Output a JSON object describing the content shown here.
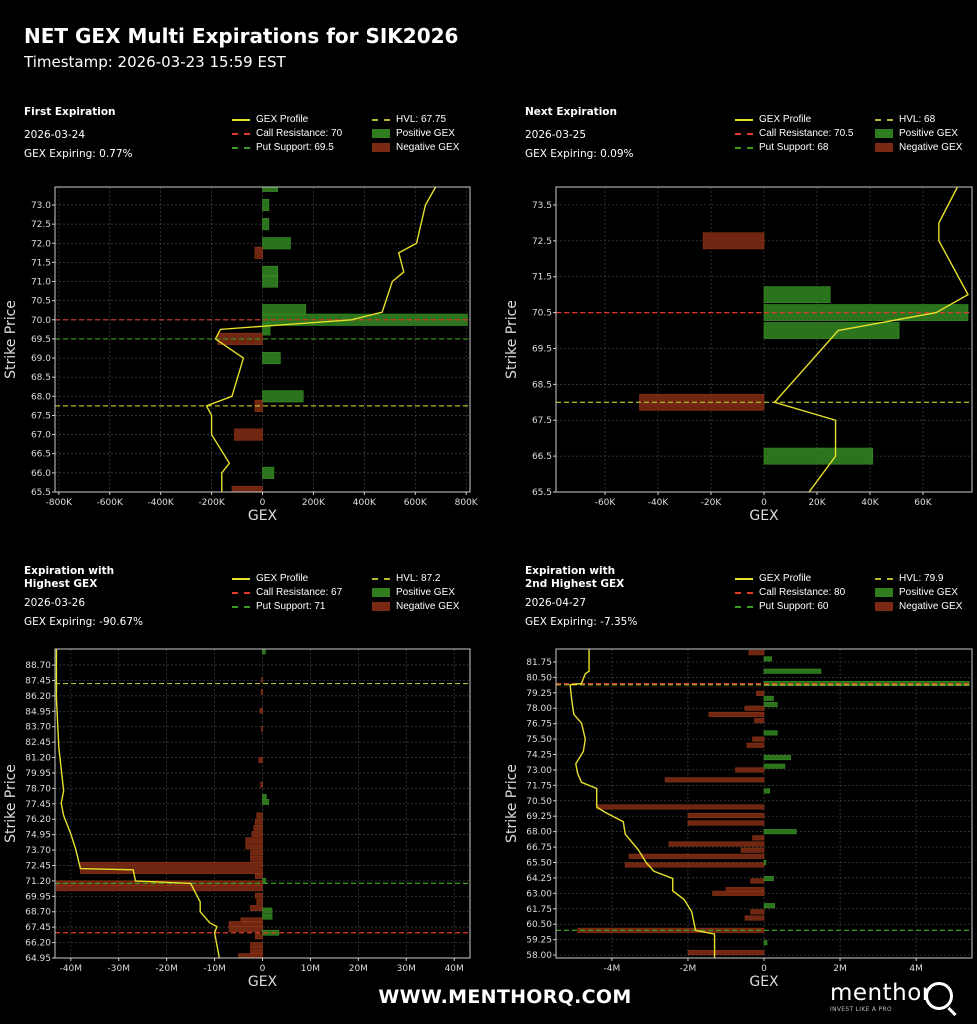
{
  "title": "NET GEX Multi Expirations for SIK2026",
  "timestamp": "Timestamp: 2026-03-23 15:59 EST",
  "footer": "WWW.MENTHORQ.COM",
  "logo": {
    "name": "menthor",
    "tagline": "INVEST LIKE A PRO"
  },
  "colors": {
    "positive": "#2f7d1f",
    "negative": "#7a2a12",
    "profile": "#e6e12a",
    "call": "#e03a2a",
    "put": "#3a9a22",
    "hvl": "#b8b82a",
    "grid": "#444444"
  },
  "panels": [
    {
      "heading": "First Expiration",
      "date": "2026-03-24",
      "expiring": "GEX Expiring: 0.77%",
      "legend": {
        "profile": "GEX Profile",
        "call": "Call Resistance: 70",
        "put": "Put Support: 69.5",
        "hvl": "HVL: 67.75",
        "pos": "Positive GEX",
        "neg": "Negative GEX"
      }
    },
    {
      "heading": "Next Expiration",
      "date": "2026-03-25",
      "expiring": "GEX Expiring: 0.09%",
      "legend": {
        "profile": "GEX Profile",
        "call": "Call Resistance: 70.5",
        "put": "Put Support: 68",
        "hvl": "HVL: 68",
        "pos": "Positive GEX",
        "neg": "Negative GEX"
      }
    },
    {
      "heading": "Expiration with\nHighest GEX",
      "date": "2026-03-26",
      "expiring": "GEX Expiring: -90.67%",
      "legend": {
        "profile": "GEX Profile",
        "call": "Call Resistance: 67",
        "put": "Put Support: 71",
        "hvl": "HVL: 87.2",
        "pos": "Positive GEX",
        "neg": "Negative GEX"
      }
    },
    {
      "heading": "Expiration with\n2nd Highest GEX",
      "date": "2026-04-27",
      "expiring": "GEX Expiring: -7.35%",
      "legend": {
        "profile": "GEX Profile",
        "call": "Call Resistance: 80",
        "put": "Put Support: 60",
        "hvl": "HVL: 79.9",
        "pos": "Positive GEX",
        "neg": "Negative GEX"
      }
    }
  ],
  "chart_data": [
    {
      "type": "bar",
      "orientation": "horizontal",
      "xlabel": "GEX",
      "ylabel": "Strike Price",
      "grid": true,
      "xlim": [
        -815000,
        815000
      ],
      "ylim": [
        65.5,
        73.47
      ],
      "xticks": [
        -800000,
        -600000,
        -400000,
        -200000,
        0,
        200000,
        400000,
        600000,
        800000
      ],
      "xtick_labels": [
        "-800K",
        "-600K",
        "-400K",
        "-200K",
        "0",
        "200K",
        "400K",
        "600K",
        "800K"
      ],
      "yticks": [
        65.5,
        66.0,
        66.5,
        67.0,
        67.5,
        68.0,
        68.5,
        69.0,
        69.5,
        70.0,
        70.5,
        71.0,
        71.5,
        72.0,
        72.5,
        73.0
      ],
      "ytick_labels": [
        "65.5",
        "66.0",
        "66.5",
        "67.0",
        "67.5",
        "68.0",
        "68.5",
        "69.0",
        "69.5",
        "70.0",
        "70.5",
        "71.0",
        "71.5",
        "72.0",
        "72.5",
        "73.0"
      ],
      "bars": [
        [
          73.5,
          60000
        ],
        [
          73.0,
          25000
        ],
        [
          72.5,
          25000
        ],
        [
          72.0,
          110000
        ],
        [
          71.75,
          -30000
        ],
        [
          71.25,
          60000
        ],
        [
          71.0,
          60000
        ],
        [
          70.25,
          170000
        ],
        [
          70.0,
          805000
        ],
        [
          69.75,
          30000
        ],
        [
          69.5,
          -175000
        ],
        [
          69.0,
          70000
        ],
        [
          68.0,
          160000
        ],
        [
          67.75,
          -30000
        ],
        [
          67.0,
          -110000
        ],
        [
          66.0,
          45000
        ],
        [
          65.5,
          -120000
        ]
      ],
      "profile": [
        [
          680000,
          73.47
        ],
        [
          640000,
          73.0
        ],
        [
          605000,
          72.0
        ],
        [
          535000,
          71.75
        ],
        [
          555000,
          71.25
        ],
        [
          510000,
          71.0
        ],
        [
          470000,
          70.2
        ],
        [
          350000,
          70.0
        ],
        [
          0,
          69.83
        ],
        [
          -165000,
          69.75
        ],
        [
          -185000,
          69.5
        ],
        [
          -75000,
          69.0
        ],
        [
          -120000,
          68.0
        ],
        [
          -220000,
          67.75
        ],
        [
          -200000,
          67.5
        ],
        [
          -200000,
          67.0
        ],
        [
          -130000,
          66.25
        ],
        [
          -160000,
          66.0
        ],
        [
          -160000,
          65.5
        ]
      ],
      "call_resistance": 70,
      "put_support": 69.5,
      "hvl": 67.75
    },
    {
      "type": "bar",
      "orientation": "horizontal",
      "xlabel": "GEX",
      "ylabel": "Strike Price",
      "grid": true,
      "xlim": [
        -78500,
        78500
      ],
      "ylim": [
        65.5,
        74.0
      ],
      "xticks": [
        -60000,
        -40000,
        -20000,
        0,
        20000,
        40000,
        60000
      ],
      "xtick_labels": [
        "-60K",
        "-40K",
        "-20K",
        "0",
        "20K",
        "40K",
        "60K"
      ],
      "yticks": [
        65.5,
        66.5,
        67.5,
        68.5,
        69.5,
        70.5,
        71.5,
        72.5,
        73.5
      ],
      "ytick_labels": [
        "65.5",
        "66.5",
        "67.5",
        "68.5",
        "69.5",
        "70.5",
        "71.5",
        "72.5",
        "73.5"
      ],
      "bars": [
        [
          72.5,
          -23000
        ],
        [
          71.0,
          25000
        ],
        [
          70.5,
          77000
        ],
        [
          70.0,
          51000
        ],
        [
          68.0,
          -47000
        ],
        [
          66.5,
          41000
        ]
      ],
      "profile": [
        [
          73000,
          74.0
        ],
        [
          66000,
          73.0
        ],
        [
          66000,
          72.5
        ],
        [
          77000,
          71.0
        ],
        [
          65000,
          70.5
        ],
        [
          28000,
          70.0
        ],
        [
          4000,
          68.0
        ],
        [
          27000,
          67.5
        ],
        [
          27000,
          66.5
        ],
        [
          17000,
          65.5
        ]
      ],
      "call_resistance": 70.5,
      "put_support": 68,
      "hvl": 68
    },
    {
      "type": "bar",
      "orientation": "horizontal",
      "xlabel": "GEX",
      "ylabel": "Strike Price",
      "grid": true,
      "xlim": [
        -43300000,
        43300000
      ],
      "ylim": [
        64.95,
        90.0
      ],
      "xticks": [
        -40000000,
        -30000000,
        -20000000,
        -10000000,
        0,
        10000000,
        20000000,
        30000000,
        40000000
      ],
      "xtick_labels": [
        "-40M",
        "-30M",
        "-20M",
        "-10M",
        "0",
        "10M",
        "20M",
        "30M",
        "40M"
      ],
      "yticks": [
        64.95,
        66.2,
        67.45,
        68.7,
        69.95,
        71.2,
        72.45,
        73.7,
        74.95,
        76.2,
        77.45,
        78.7,
        79.95,
        81.2,
        82.45,
        83.7,
        84.95,
        86.2,
        87.45,
        88.7
      ],
      "ytick_labels": [
        "64.95",
        "66.20",
        "67.45",
        "68.70",
        "69.95",
        "71.20",
        "72.45",
        "73.70",
        "74.95",
        "76.20",
        "77.45",
        "78.70",
        "79.95",
        "81.20",
        "82.45",
        "83.70",
        "84.95",
        "86.20",
        "87.45",
        "88.70"
      ],
      "bars": [
        [
          89.8,
          600000
        ],
        [
          87.5,
          -200000
        ],
        [
          86.5,
          -300000
        ],
        [
          85.0,
          -500000
        ],
        [
          83.5,
          -200000
        ],
        [
          81.0,
          -800000
        ],
        [
          79.0,
          -400000
        ],
        [
          78.0,
          800000
        ],
        [
          77.6,
          1300000
        ],
        [
          76.5,
          -1200000
        ],
        [
          76.0,
          -1500000
        ],
        [
          75.5,
          -1800000
        ],
        [
          75.0,
          -2200000
        ],
        [
          74.5,
          -3500000
        ],
        [
          74.0,
          -3500000
        ],
        [
          73.5,
          -2500000
        ],
        [
          73.0,
          -2500000
        ],
        [
          72.5,
          -38000000
        ],
        [
          72.0,
          -38000000
        ],
        [
          71.6,
          -1500000
        ],
        [
          71.2,
          700000
        ],
        [
          71.0,
          -43000000
        ],
        [
          70.6,
          -43000000
        ],
        [
          70.0,
          -1500000
        ],
        [
          69.5,
          -1200000
        ],
        [
          69.0,
          -2500000
        ],
        [
          68.8,
          2000000
        ],
        [
          68.3,
          2000000
        ],
        [
          68.0,
          -4500000
        ],
        [
          67.7,
          -7000000
        ],
        [
          67.3,
          -7000000
        ],
        [
          67.0,
          3400000
        ],
        [
          66.7,
          -1500000
        ],
        [
          66.0,
          -2500000
        ],
        [
          65.5,
          -2500000
        ],
        [
          65.1,
          -5000000
        ]
      ],
      "profile": [
        [
          -43000000,
          90.0
        ],
        [
          -43000000,
          86.0
        ],
        [
          -42500000,
          82.0
        ],
        [
          -41500000,
          78.5
        ],
        [
          -42000000,
          77.5
        ],
        [
          -41500000,
          76.5
        ],
        [
          -40000000,
          75.0
        ],
        [
          -39000000,
          73.8
        ],
        [
          -38000000,
          72.2
        ],
        [
          -27000000,
          72.1
        ],
        [
          -26500000,
          71.2
        ],
        [
          -15000000,
          71.0
        ],
        [
          -13000000,
          69.5
        ],
        [
          -13000000,
          68.7
        ],
        [
          -11000000,
          67.8
        ],
        [
          -9500000,
          67.5
        ],
        [
          -10000000,
          67.0
        ],
        [
          -9000000,
          64.95
        ]
      ],
      "call_resistance": 67,
      "put_support": 71,
      "hvl": 87.2
    },
    {
      "type": "bar",
      "orientation": "horizontal",
      "xlabel": "GEX",
      "ylabel": "Strike Price",
      "grid": true,
      "xlim": [
        -5470000,
        5470000
      ],
      "ylim": [
        57.76,
        82.8
      ],
      "xticks": [
        -4000000,
        -2000000,
        0,
        2000000,
        4000000
      ],
      "xtick_labels": [
        "-4M",
        "-2M",
        "0",
        "2M",
        "4M"
      ],
      "yticks": [
        58.0,
        59.25,
        60.5,
        61.75,
        63.0,
        64.25,
        65.5,
        66.75,
        68.0,
        69.25,
        70.5,
        71.75,
        73.0,
        74.25,
        75.5,
        76.75,
        78.0,
        79.25,
        80.5,
        81.75
      ],
      "ytick_labels": [
        "58.00",
        "59.25",
        "60.50",
        "61.75",
        "63.00",
        "64.25",
        "65.50",
        "66.75",
        "68.00",
        "69.25",
        "70.50",
        "71.75",
        "73.00",
        "74.25",
        "75.50",
        "76.75",
        "78.00",
        "79.25",
        "80.50",
        "81.75"
      ],
      "bars": [
        [
          82.5,
          -400000
        ],
        [
          82.0,
          200000
        ],
        [
          81.0,
          1500000
        ],
        [
          80.0,
          5400000
        ],
        [
          79.2,
          -200000
        ],
        [
          78.8,
          250000
        ],
        [
          78.3,
          350000
        ],
        [
          78.0,
          -500000
        ],
        [
          77.5,
          -1450000
        ],
        [
          77.0,
          -250000
        ],
        [
          76.0,
          350000
        ],
        [
          75.5,
          -300000
        ],
        [
          75.0,
          -450000
        ],
        [
          74.0,
          700000
        ],
        [
          73.3,
          550000
        ],
        [
          73.0,
          -750000
        ],
        [
          72.2,
          -2600000
        ],
        [
          71.3,
          150000
        ],
        [
          70.0,
          -4400000
        ],
        [
          69.3,
          -2000000
        ],
        [
          68.7,
          -2000000
        ],
        [
          68.0,
          850000
        ],
        [
          67.5,
          -300000
        ],
        [
          67.0,
          -2500000
        ],
        [
          66.5,
          -600000
        ],
        [
          66.0,
          -3550000
        ],
        [
          65.5,
          50000
        ],
        [
          65.3,
          -3650000
        ],
        [
          64.0,
          -350000
        ],
        [
          64.2,
          250000
        ],
        [
          63.3,
          -1000000
        ],
        [
          63.0,
          -1350000
        ],
        [
          62.0,
          280000
        ],
        [
          61.5,
          -350000
        ],
        [
          61.0,
          -500000
        ],
        [
          60.0,
          -4900000
        ],
        [
          59.0,
          80000
        ],
        [
          58.2,
          -2000000
        ]
      ],
      "profile": [
        [
          -4600000,
          82.8
        ],
        [
          -4600000,
          81.0
        ],
        [
          -4700000,
          80.8
        ],
        [
          -4800000,
          80.0
        ],
        [
          -5100000,
          79.9
        ],
        [
          -5050000,
          78.5
        ],
        [
          -5000000,
          77.5
        ],
        [
          -4800000,
          76.8
        ],
        [
          -4700000,
          75.5
        ],
        [
          -4750000,
          74.5
        ],
        [
          -4950000,
          73.5
        ],
        [
          -4900000,
          72.7
        ],
        [
          -4800000,
          72.0
        ],
        [
          -4400000,
          71.5
        ],
        [
          -4400000,
          70.0
        ],
        [
          -4200000,
          69.6
        ],
        [
          -3700000,
          68.8
        ],
        [
          -3650000,
          67.8
        ],
        [
          -3300000,
          66.5
        ],
        [
          -3100000,
          65.5
        ],
        [
          -2900000,
          64.8
        ],
        [
          -2400000,
          64.2
        ],
        [
          -2400000,
          63.2
        ],
        [
          -2100000,
          62.5
        ],
        [
          -1900000,
          61.5
        ],
        [
          -1800000,
          60.0
        ],
        [
          -1300000,
          59.7
        ],
        [
          -1300000,
          57.76
        ]
      ],
      "call_resistance": 80,
      "put_support": 60,
      "hvl": 79.9
    }
  ]
}
